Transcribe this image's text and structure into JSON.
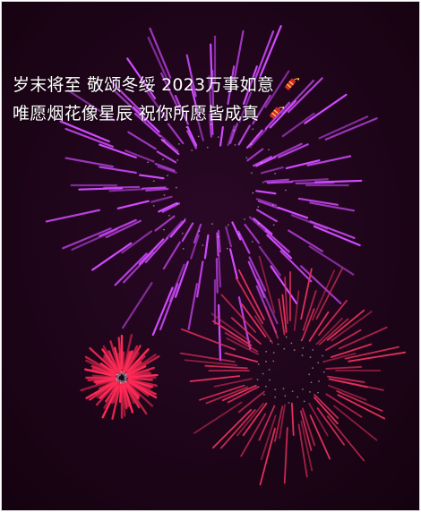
{
  "caption": {
    "line1": "岁末将至 敬颂冬绥 2023万事如意",
    "line2": "唯愿烟花像星辰 祝你所愿皆成真"
  },
  "decoration_icon": "firecracker-icon",
  "colors": {
    "background": "#1a0418",
    "firework_large": "#d04bff",
    "firework_right": "#e0305a",
    "firework_small": "#ff2a55",
    "text": "#ffffff"
  }
}
